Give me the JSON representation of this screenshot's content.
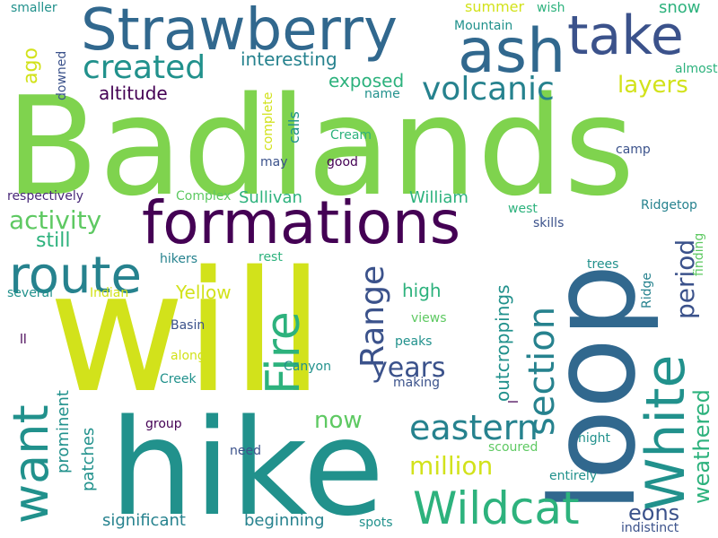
{
  "words": {
    "badlands": "Badlands",
    "will": "will",
    "loop": "loop",
    "hike": "hike",
    "strawberry": "Strawberry",
    "formations": "formations",
    "ash": "ash",
    "take": "take",
    "route": "route",
    "white": "White",
    "fire": "Fire",
    "want": "want",
    "wildcat": "Wildcat",
    "section": "section",
    "created": "created",
    "volcanic": "volcanic",
    "eastern": "eastern",
    "range": "Range",
    "years": "years",
    "million": "million",
    "weathered": "weathered",
    "period": "period",
    "activity": "activity",
    "layers": "layers",
    "eons": "eons",
    "now": "now",
    "ago": "ago",
    "interesting": "interesting",
    "exposed": "exposed",
    "altitude": "altitude",
    "still": "still",
    "yellow": "Yellow",
    "high": "high",
    "outcroppings": "outcroppings",
    "significant": "significant",
    "beginning": "beginning",
    "prominent": "prominent",
    "patches": "patches",
    "sullivan": "Sullivan",
    "william": "William",
    "summer": "summer",
    "snow": "snow",
    "smaller": "smaller",
    "mountain": "Mountain",
    "wish": "wish",
    "almost": "almost",
    "downed": "downed",
    "complete": "complete",
    "calls": "calls",
    "name": "name",
    "cream": "Cream",
    "camp": "camp",
    "may": "may",
    "good": "good",
    "respectively": "respectively",
    "complex": "Complex",
    "west": "west",
    "skills": "skills",
    "ridgetop": "Ridgetop",
    "finding": "finding",
    "hikers": "hikers",
    "rest": "rest",
    "trees": "trees",
    "several": "several",
    "indian": "Indian",
    "ridge": "Ridge",
    "basin": "Basin",
    "views": "views",
    "ll": "ll",
    "l": "l",
    "peaks": "peaks",
    "along": "along",
    "canyon": "Canyon",
    "creek": "Creek",
    "making": "making",
    "group": "group",
    "scoured": "scoured",
    "night": "night",
    "need": "need",
    "entirely": "entirely",
    "spots": "spots",
    "indistinct": "indistinct"
  },
  "colors": {
    "lime": "#7fd34e",
    "yellow": "#d2e21b",
    "teal": "#21918c",
    "green": "#2db27d",
    "navy": "#3b528b",
    "purple": "#440154",
    "indigo": "#482878",
    "blue": "#31688e",
    "lightgreen": "#5ec962",
    "lightyellow": "#fde725",
    "darkteal": "#26828e"
  }
}
